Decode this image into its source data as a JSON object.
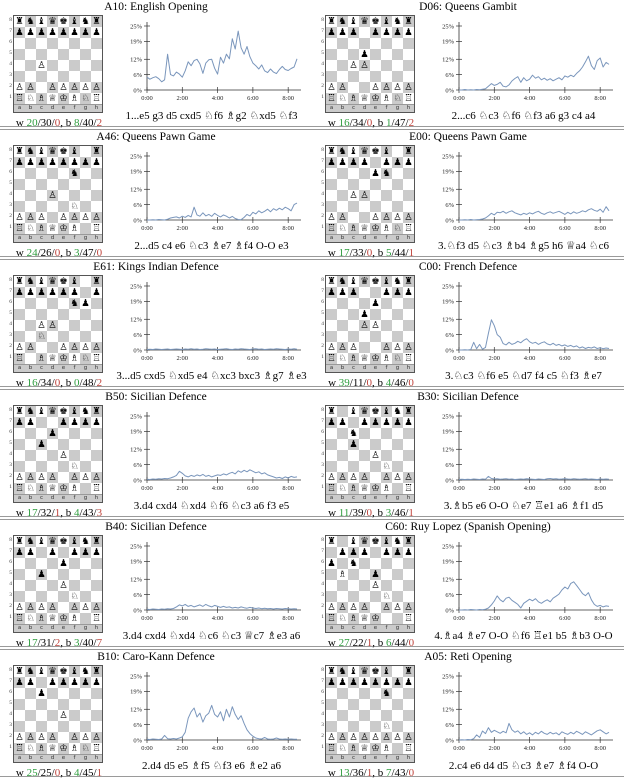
{
  "labels": {
    "white_prefix": "w ",
    "black_prefix": "b ",
    "slash": "/",
    "comma": ", "
  },
  "board_labels": {
    "ranks": [
      "8",
      "7",
      "6",
      "5",
      "4",
      "3",
      "2",
      "1"
    ],
    "files": [
      "a",
      "b",
      "c",
      "d",
      "e",
      "f",
      "g",
      "h"
    ]
  },
  "colors": {
    "win": "#2f9e3f",
    "loss": "#c0443c",
    "draw": "#000000",
    "curve": "#7a96bc",
    "axis": "#333333",
    "dark_square": "#cbcbcb",
    "separator": "#9a9a9a"
  },
  "chart_axes": {
    "y_tick_labels": [
      "0%",
      "6%",
      "12%",
      "19%",
      "25%"
    ],
    "y_tick_values": [
      0,
      6,
      12,
      19,
      25
    ],
    "x_tick_labels": [
      "0:00",
      "2:00",
      "4:00",
      "6:00",
      "8:00"
    ],
    "x_tick_values": [
      0,
      2,
      4,
      6,
      8
    ],
    "ylim": [
      0,
      25
    ],
    "xlim": [
      0,
      8.5
    ],
    "grid": false,
    "legend": "none"
  },
  "panels": [
    {
      "title": "A10: English Opening",
      "fen": "rnbqkbnr/pppppppp/8/8/2P5/8/PP1PPPPP/RNBQKBNR",
      "stats": {
        "w": [
          "20",
          "30",
          "0"
        ],
        "b": [
          "8",
          "40",
          "2"
        ]
      },
      "moves": "1...e5 g3 d5 cxd5 ♘f6 ♗g2 ♘xd5 ♘f3"
    },
    {
      "title": "D06: Queens Gambit",
      "fen": "rnbqkbnr/ppp1pppp/8/3p4/2PP4/8/PP2PPPP/RNBQKBNR",
      "stats": {
        "w": [
          "16",
          "34",
          "0"
        ],
        "b": [
          "1",
          "47",
          "2"
        ]
      },
      "moves": "2...c6 ♘c3 ♘f6 ♘f3 a6 g3 c4 a4"
    },
    {
      "title": "A46: Queens Pawn Game",
      "fen": "rnbqkb1r/pppppppp/5n2/8/3P4/5N2/PPP1PPPP/RNBQKB1R",
      "stats": {
        "w": [
          "24",
          "26",
          "0"
        ],
        "b": [
          "3",
          "47",
          "0"
        ]
      },
      "moves": "2...d5 c4 e6 ♘c3 ♗e7 ♗f4 O-O e3"
    },
    {
      "title": "E00: Queens Pawn Game",
      "fen": "rnbqkb1r/pppp1ppp/4pn2/8/2PP4/8/PP2PPPP/RNBQKBNR",
      "stats": {
        "w": [
          "17",
          "33",
          "0"
        ],
        "b": [
          "5",
          "44",
          "1"
        ]
      },
      "moves": "3.♘f3 d5 ♘c3 ♗b4 ♗g5 h6 ♕a4 ♘c6"
    },
    {
      "title": "E61: Kings Indian Defence",
      "fen": "rnbqkb1r/pppppp1p/5np1/8/2PP4/2N5/PP2PPPP/R1BQKBNR",
      "stats": {
        "w": [
          "16",
          "34",
          "0"
        ],
        "b": [
          "0",
          "48",
          "2"
        ]
      },
      "moves": "3...d5 cxd5 ♘xd5 e4 ♘xc3 bxc3 ♗g7 ♗e3"
    },
    {
      "title": "C00: French Defence",
      "fen": "rnbqkbnr/ppp2ppp/4p3/3p4/3PP3/8/PPP2PPP/RNBQKBNR",
      "stats": {
        "w": [
          "39",
          "11",
          "0"
        ],
        "b": [
          "4",
          "46",
          "0"
        ]
      },
      "moves": "3.♘c3 ♘f6 e5 ♘d7 f4 c5 ♘f3 ♗e7"
    },
    {
      "title": "B50: Sicilian Defence",
      "fen": "rnbqkbnr/pp2pppp/3p4/2p5/4P3/5N2/PPPP1PPP/RNBQKB1R",
      "stats": {
        "w": [
          "17",
          "32",
          "1"
        ],
        "b": [
          "4",
          "43",
          "3"
        ]
      },
      "moves": "3.d4 cxd4 ♘xd4 ♘f6 ♘c3 a6 f3 e5"
    },
    {
      "title": "B30: Sicilian Defence",
      "fen": "r1bqkbnr/pp1ppppp/2n5/2p5/4P3/5N2/PPPP1PPP/RNBQKB1R",
      "stats": {
        "w": [
          "11",
          "39",
          "0"
        ],
        "b": [
          "3",
          "46",
          "1"
        ]
      },
      "moves": "3.♗b5 e6 O-O ♘e7 ♖e1 a6 ♗f1 d5"
    },
    {
      "title": "B40: Sicilian Defence",
      "fen": "rnbqkbnr/pp1p1ppp/4p3/2p5/4P3/5N2/PPPP1PPP/RNBQKB1R",
      "stats": {
        "w": [
          "17",
          "31",
          "2"
        ],
        "b": [
          "3",
          "40",
          "7"
        ]
      },
      "moves": "3.d4 cxd4 ♘xd4 ♘c6 ♘c3 ♕c7 ♗e3 a6"
    },
    {
      "title": "C60: Ruy Lopez (Spanish Opening)",
      "fen": "r1bqkbnr/1ppp1ppp/p1n5/1B2p3/4P3/5N2/PPPP1PPP/RNBQK2R",
      "stats": {
        "w": [
          "27",
          "22",
          "1"
        ],
        "b": [
          "6",
          "44",
          "0"
        ]
      },
      "moves": "4.♗a4 ♗e7 O-O ♘f6 ♖e1 b5 ♗b3 O-O"
    },
    {
      "title": "B10: Caro-Kann Defence",
      "fen": "rnbqkbnr/pp1ppppp/2p5/8/4P3/8/PPPP1PPP/RNBQKBNR",
      "stats": {
        "w": [
          "25",
          "25",
          "0"
        ],
        "b": [
          "4",
          "45",
          "1"
        ]
      },
      "moves": "2.d4 d5 e5 ♗f5 ♘f3 e6 ♗e2 a6"
    },
    {
      "title": "A05: Reti Opening",
      "fen": "rnbqkb1r/pppppppp/5n2/8/8/5N2/PPPPPPPP/RNBQKB1R",
      "stats": {
        "w": [
          "13",
          "36",
          "1"
        ],
        "b": [
          "7",
          "43",
          "0"
        ]
      },
      "moves": "2.c4 e6 d4 d5 ♘c3 ♗e7 ♗f4 O-O"
    }
  ],
  "chart_data": [
    {
      "type": "line",
      "title": "A10: English Opening",
      "yunit": "%",
      "xlim": [
        0,
        8.5
      ],
      "ylim": [
        0,
        25
      ],
      "values": [
        5,
        4.2,
        4.8,
        5.2,
        4.4,
        3.2,
        4,
        14,
        6,
        5.5,
        7,
        6.2,
        5,
        7.5,
        11,
        9.5,
        11.5,
        12,
        10.2,
        6.5,
        10.5,
        11.8,
        12,
        8.5,
        6.2,
        12.8,
        10.5,
        14,
        12.2,
        20,
        16,
        23,
        16.5,
        14,
        17,
        13,
        10.5,
        9.5,
        8.2,
        9.8,
        7.5,
        6.8,
        8.2,
        7,
        6.4,
        8,
        9.2,
        8,
        7.6,
        8.4,
        9,
        12.2
      ]
    },
    {
      "type": "line",
      "title": "D06: Queens Gambit",
      "yunit": "%",
      "xlim": [
        0,
        8.5
      ],
      "ylim": [
        0,
        25
      ],
      "values": [
        0,
        0,
        0.2,
        0,
        0.1,
        0,
        0.2,
        0.1,
        0.3,
        0.5,
        1.5,
        2.5,
        1.8,
        2.2,
        3,
        1.5,
        1.2,
        2,
        3.5,
        4.5,
        5.2,
        3,
        4.8,
        3.6,
        4.2,
        5.8,
        4.6,
        5.2,
        4,
        4.6,
        3.8,
        4.4,
        3.6,
        4.2,
        4.8,
        4,
        5.5,
        5,
        5.8,
        5.2,
        6.5,
        7.5,
        9,
        11,
        13.2,
        9.5,
        8,
        11.5,
        12.5,
        9,
        10.8,
        10
      ]
    },
    {
      "type": "line",
      "title": "A46: Queens Pawn Game",
      "yunit": "%",
      "xlim": [
        0,
        8.5
      ],
      "ylim": [
        0,
        25
      ],
      "values": [
        0,
        0,
        0.1,
        0,
        0.2,
        0.1,
        0,
        0.3,
        0.8,
        1,
        1.2,
        0.8,
        1.5,
        1,
        1.8,
        1.2,
        5,
        2,
        1.5,
        2.8,
        1.6,
        2.2,
        1.4,
        2.6,
        1.8,
        1.2,
        2,
        1.5,
        0.8,
        1.4,
        0.6,
        0.2,
        0.1,
        1,
        2.2,
        1.6,
        3,
        2.4,
        3.6,
        2.8,
        3.4,
        4.2,
        3.2,
        4.4,
        3.8,
        4.6,
        4,
        5,
        4.4,
        3.6,
        6,
        6.6
      ]
    },
    {
      "type": "line",
      "title": "E00: Queens Pawn Game",
      "yunit": "%",
      "xlim": [
        0,
        8.5
      ],
      "ylim": [
        0,
        25
      ],
      "values": [
        0,
        0,
        0.1,
        0,
        0.2,
        0,
        0.1,
        0.2,
        0.4,
        0.8,
        1.6,
        2.6,
        2,
        3,
        2.8,
        3.4,
        2.6,
        3.2,
        3.6,
        2.8,
        2.4,
        2,
        2.6,
        2.2,
        2.8,
        2.4,
        3,
        3.4,
        2.6,
        2.2,
        2.8,
        3.2,
        2.6,
        3,
        3.4,
        2.8,
        2.2,
        3,
        2.4,
        3.2,
        2.6,
        3,
        3.6,
        3.2,
        4,
        4.4,
        3.8,
        3.4,
        4.2,
        3,
        5.2,
        3.6
      ]
    },
    {
      "type": "line",
      "title": "E61: Kings Indian Defence",
      "yunit": "%",
      "xlim": [
        0,
        8.5
      ],
      "ylim": [
        0,
        25
      ],
      "values": [
        0.2,
        0.3,
        0.2,
        0.4,
        0.3,
        0.2,
        0.3,
        0.4,
        0.2,
        0.3,
        0.4,
        0.3,
        0.2,
        0.4,
        0.3,
        0.5,
        0.3,
        0.4,
        0.2,
        0.3,
        0.5,
        0.4,
        0.3,
        0.4,
        0.2,
        0.3,
        0.4,
        0.5,
        0.3,
        0.2,
        0.4,
        0.3,
        0.5,
        0.4,
        0.3,
        0.2,
        0.4,
        0.5,
        0.3,
        0.4,
        0.2,
        0.3,
        0.4,
        0.3,
        0.5,
        0.4,
        0.3,
        0.2,
        0.4,
        0.3,
        0.5,
        0.3
      ]
    },
    {
      "type": "line",
      "title": "C00: French Defence",
      "yunit": "%",
      "xlim": [
        0,
        8.5
      ],
      "ylim": [
        0,
        25
      ],
      "values": [
        0,
        0,
        0.1,
        0,
        0.2,
        3,
        0.5,
        2.2,
        0.3,
        1,
        6.5,
        11.8,
        9.5,
        6,
        5,
        2.5,
        2,
        3,
        2.2,
        2.6,
        3.4,
        2.8,
        3.8,
        4.4,
        3.2,
        2.6,
        3,
        2.2,
        2.8,
        3.2,
        2.4,
        2,
        2.6,
        1.8,
        2.2,
        1.6,
        2,
        1.4,
        1.8,
        1.2,
        1.6,
        0.8,
        1.2,
        0.6,
        1,
        0.8,
        1.2,
        0.6,
        0.9,
        0.5,
        0.8,
        0.6
      ]
    },
    {
      "type": "line",
      "title": "B50: Sicilian Defence",
      "yunit": "%",
      "xlim": [
        0,
        8.5
      ],
      "ylim": [
        0,
        25
      ],
      "values": [
        0.3,
        0.2,
        0.4,
        0.3,
        0.5,
        0.4,
        0.6,
        0.5,
        0.8,
        1.2,
        1.8,
        3.4,
        2.6,
        1.6,
        1.2,
        1.8,
        1.4,
        2,
        1.6,
        2.2,
        1.4,
        1.8,
        1.2,
        1.6,
        2,
        1.8,
        2.4,
        2,
        2.6,
        3,
        2.4,
        3.6,
        3,
        3.8,
        3.2,
        4,
        3.4,
        2.8,
        3.2,
        2.4,
        2.8,
        2,
        1.6,
        1.2,
        0.8,
        1,
        0.6,
        1.2,
        0.8,
        1.4,
        1,
        1.2
      ]
    },
    {
      "type": "line",
      "title": "B30: Sicilian Defence",
      "yunit": "%",
      "xlim": [
        0,
        8.5
      ],
      "ylim": [
        0,
        25
      ],
      "values": [
        0.2,
        0.3,
        0.2,
        0.3,
        0.2,
        0.4,
        0.3,
        0.2,
        0.4,
        0.3,
        1.4,
        0.6,
        0.4,
        0.5,
        0.3,
        0.4,
        0.5,
        0.3,
        0.4,
        0.2,
        0.3,
        0.4,
        0.3,
        0.5,
        0.4,
        0.3,
        0.2,
        0.4,
        0.3,
        0.2,
        0.5,
        0.6,
        0.4,
        0.5,
        0.3,
        0.4,
        0.5,
        0.4,
        0.3,
        0.5,
        0.4,
        0.3,
        0.4,
        0.5,
        0.3,
        0.4,
        0.3,
        0.2,
        0.4,
        0.3,
        0.4,
        0.3
      ]
    },
    {
      "type": "line",
      "title": "B40: Sicilian Defence",
      "yunit": "%",
      "xlim": [
        0,
        8.5
      ],
      "ylim": [
        0,
        25
      ],
      "values": [
        0.3,
        0.2,
        0.4,
        0.3,
        0.2,
        0.4,
        0.3,
        0.5,
        0.4,
        0.6,
        1.2,
        2,
        1.6,
        2.2,
        1.4,
        1.8,
        1.2,
        1.6,
        2,
        1.4,
        2.2,
        1.6,
        1.2,
        1.8,
        1.4,
        1,
        1.4,
        1,
        1.2,
        0.8,
        1,
        0.8,
        1.2,
        0.9,
        0.7,
        1,
        0.8,
        0.6,
        0.8,
        0.5,
        0.7,
        0.5,
        0.6,
        0.4,
        0.6,
        0.5,
        0.4,
        0.6,
        0.5,
        0.4,
        0.5,
        0.4
      ]
    },
    {
      "type": "line",
      "title": "C60: Ruy Lopez (Spanish Opening)",
      "yunit": "%",
      "xlim": [
        0,
        8.5
      ],
      "ylim": [
        0,
        25
      ],
      "values": [
        0,
        0,
        0.1,
        0,
        0.2,
        0.1,
        0,
        0.2,
        0.1,
        0.3,
        0.8,
        2,
        3.5,
        5.5,
        4,
        3.2,
        4.6,
        5,
        3.8,
        3,
        2.2,
        0.8,
        2.6,
        3.4,
        4.2,
        3.6,
        4.4,
        3.2,
        2.6,
        3.4,
        4,
        3.2,
        4.6,
        5.4,
        6.2,
        7.8,
        9,
        8.2,
        10.4,
        11,
        9.6,
        8,
        6.4,
        5.6,
        6.8,
        4,
        2.2,
        1.4,
        1.8,
        1.2,
        1.6,
        1.4
      ]
    },
    {
      "type": "line",
      "title": "B10: Caro-Kann Defence",
      "yunit": "%",
      "xlim": [
        0,
        8.5
      ],
      "ylim": [
        0,
        25
      ],
      "values": [
        0.3,
        0.2,
        0.4,
        0.3,
        0.2,
        0.4,
        1.8,
        0.5,
        0.4,
        0.6,
        0.4,
        0.8,
        1.2,
        3,
        8.5,
        11,
        12.5,
        9,
        10.5,
        7,
        9.5,
        10.5,
        13.5,
        10,
        9,
        11,
        7.5,
        12,
        9,
        13,
        10,
        8,
        9.5,
        6.5,
        4,
        2.5,
        1.5,
        0.8,
        0.5,
        0.4,
        1,
        0.4,
        0.3,
        0.4,
        0.8,
        0.4,
        0.3,
        0.4,
        0.3,
        0.4,
        0.3,
        0.3
      ]
    },
    {
      "type": "line",
      "title": "A05: Reti Opening",
      "yunit": "%",
      "xlim": [
        0,
        8.5
      ],
      "ylim": [
        0,
        25
      ],
      "values": [
        0,
        0.1,
        0,
        0.2,
        0.1,
        0.5,
        2,
        1,
        3.5,
        2.5,
        4.8,
        3,
        3.8,
        3.2,
        2.6,
        3.4,
        2.8,
        6.5,
        4,
        3,
        3.6,
        2.4,
        3.2,
        2.2,
        2.8,
        2,
        3,
        2.4,
        3.4,
        2.6,
        2.2,
        3,
        2.4,
        2.8,
        2,
        3.2,
        2.6,
        2.2,
        3,
        2.4,
        3.4,
        2.8,
        2.2,
        3.2,
        2.6,
        2,
        2.8,
        3.6,
        4,
        3.2,
        2.4,
        3
      ]
    }
  ]
}
